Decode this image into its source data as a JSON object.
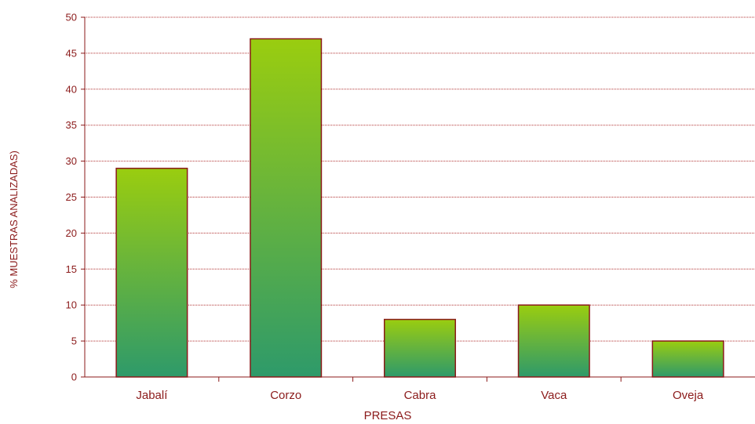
{
  "chart_data": {
    "type": "bar",
    "categories": [
      "Jabalí",
      "Corzo",
      "Cabra",
      "Vaca",
      "Oveja"
    ],
    "values": [
      29,
      47,
      8,
      10,
      5
    ],
    "xlabel": "PRESAS",
    "ylabel": "% MUESTRAS ANALIZADAS)",
    "ylim": [
      0,
      50
    ],
    "yticks": [
      0,
      5,
      10,
      15,
      20,
      25,
      30,
      35,
      40,
      45,
      50
    ],
    "ytick_labels": [
      "0",
      "5",
      "10",
      "15",
      "20",
      "25",
      "30",
      "35",
      "40",
      "45",
      "50"
    ],
    "grid": true,
    "legend": "none"
  },
  "colors": {
    "bar_top": "#9acd0f",
    "bar_bottom": "#2e9a6a",
    "bar_border": "#8b1a1a",
    "grid": "#b03030",
    "axis": "#8b1a1a",
    "text": "#8b1a1a"
  }
}
